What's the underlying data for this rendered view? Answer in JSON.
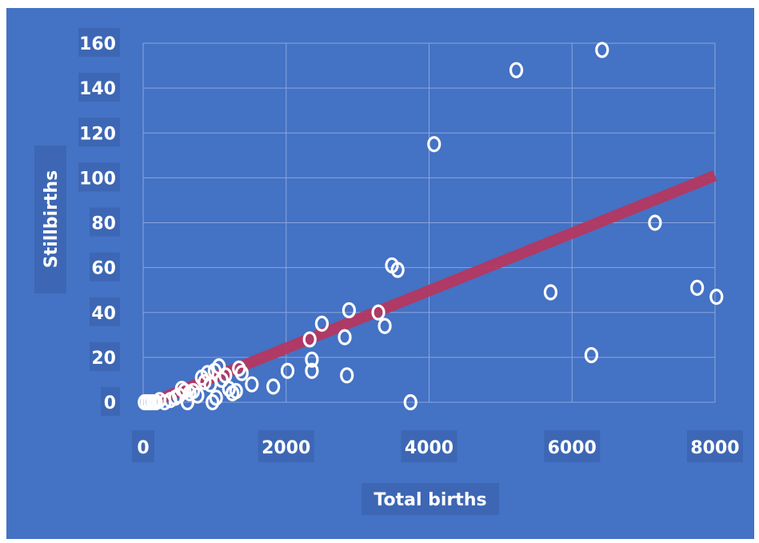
{
  "chart_data": {
    "type": "scatter",
    "xlabel": "Total births",
    "ylabel": "Stillbirths",
    "xlim": [
      0,
      8000
    ],
    "ylim": [
      0,
      160
    ],
    "xticks": [
      "0",
      "2000",
      "4000",
      "6000",
      "8000"
    ],
    "yticks": [
      "0",
      "20",
      "40",
      "60",
      "80",
      "100",
      "120",
      "140",
      "160"
    ],
    "grid": true,
    "colors": {
      "background": "#4472c4",
      "points": "#ffffff",
      "trendline": "#b8365d",
      "grid": "#8aa5dd"
    },
    "points": [
      [
        20,
        0
      ],
      [
        60,
        0
      ],
      [
        100,
        0
      ],
      [
        140,
        0
      ],
      [
        180,
        0
      ],
      [
        230,
        1
      ],
      [
        300,
        0
      ],
      [
        380,
        1
      ],
      [
        450,
        2
      ],
      [
        500,
        3
      ],
      [
        540,
        6
      ],
      [
        580,
        5
      ],
      [
        620,
        0
      ],
      [
        650,
        4
      ],
      [
        700,
        5
      ],
      [
        760,
        3
      ],
      [
        820,
        11
      ],
      [
        860,
        9
      ],
      [
        900,
        13
      ],
      [
        940,
        8
      ],
      [
        970,
        0
      ],
      [
        1000,
        14
      ],
      [
        1020,
        2
      ],
      [
        1060,
        16
      ],
      [
        1100,
        10
      ],
      [
        1150,
        12
      ],
      [
        1200,
        6
      ],
      [
        1250,
        4
      ],
      [
        1300,
        5
      ],
      [
        1340,
        15
      ],
      [
        1380,
        13
      ],
      [
        1520,
        8
      ],
      [
        1820,
        7
      ],
      [
        2020,
        14
      ],
      [
        2330,
        28
      ],
      [
        2360,
        14
      ],
      [
        2360,
        19
      ],
      [
        2500,
        35
      ],
      [
        2820,
        29
      ],
      [
        2850,
        12
      ],
      [
        2880,
        41
      ],
      [
        3290,
        40
      ],
      [
        3380,
        34
      ],
      [
        3480,
        61
      ],
      [
        3560,
        59
      ],
      [
        3740,
        0
      ],
      [
        4070,
        115
      ],
      [
        5220,
        148
      ],
      [
        5700,
        49
      ],
      [
        6270,
        21
      ],
      [
        6420,
        157
      ],
      [
        7160,
        80
      ],
      [
        7750,
        51
      ],
      [
        8020,
        47
      ]
    ],
    "trendline": {
      "x": [
        200,
        8000
      ],
      "y": [
        1,
        101
      ]
    }
  }
}
